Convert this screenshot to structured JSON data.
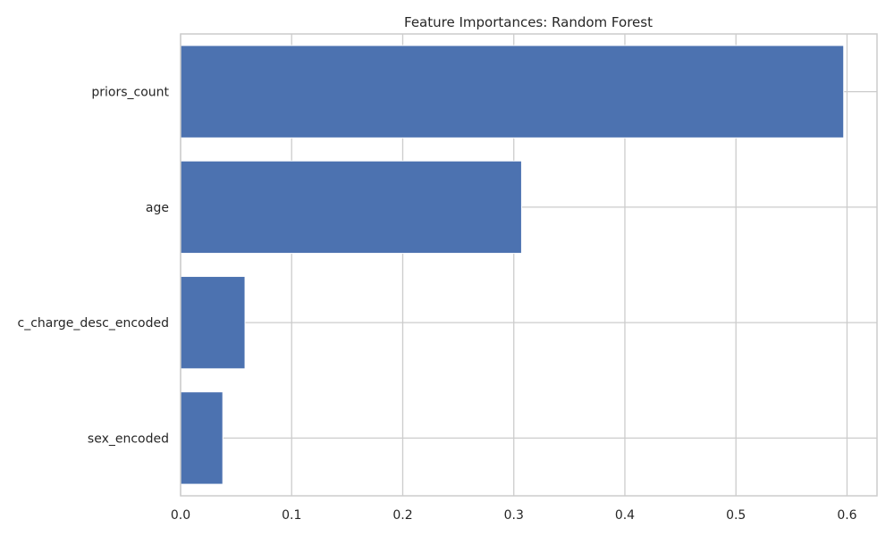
{
  "chart_data": {
    "type": "bar",
    "orientation": "horizontal",
    "title": "Feature Importances: Random Forest",
    "xlabel": "",
    "ylabel": "",
    "categories": [
      "priors_count",
      "age",
      "c_charge_desc_encoded",
      "sex_encoded"
    ],
    "values": [
      0.597,
      0.307,
      0.058,
      0.038
    ],
    "xlim": [
      0.0,
      0.627
    ],
    "xticks": [
      0.0,
      0.1,
      0.2,
      0.3,
      0.4,
      0.5,
      0.6
    ],
    "xtick_labels": [
      "0.0",
      "0.1",
      "0.2",
      "0.3",
      "0.4",
      "0.5",
      "0.6"
    ],
    "grid": true,
    "colors": {
      "bar": "#4c72b0",
      "grid": "#cccccc",
      "spine": "#cccccc",
      "text": "#262626",
      "background": "#ffffff"
    }
  }
}
